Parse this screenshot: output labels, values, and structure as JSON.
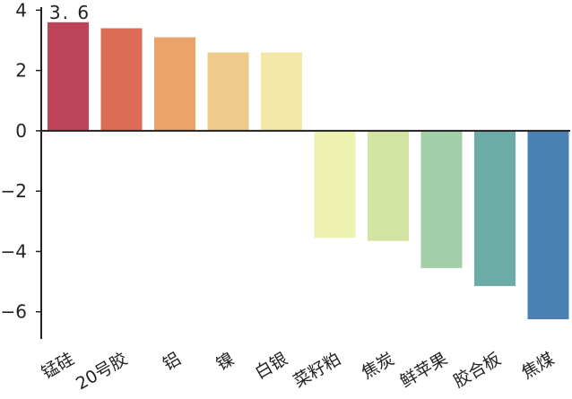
{
  "chart_data": {
    "type": "bar",
    "title": "",
    "xlabel": "",
    "ylabel": "",
    "categories": [
      "锰硅",
      "20号胶",
      "铝",
      "镍",
      "白银",
      "菜籽粕",
      "焦炭",
      "鲜苹果",
      "胶合板",
      "焦煤"
    ],
    "values": [
      3.6,
      3.4,
      3.1,
      2.6,
      2.6,
      -3.55,
      -3.65,
      -4.55,
      -5.15,
      -6.25
    ],
    "colors": [
      "#be4459",
      "#dd6c57",
      "#eca36a",
      "#eecb8a",
      "#f3e7a8",
      "#eef2b0",
      "#d3e3a2",
      "#a2cfa8",
      "#6bada6",
      "#4a81b2"
    ],
    "ylim": [
      -6.9,
      4.1
    ],
    "yticks": [
      4,
      2,
      0,
      -2,
      -4,
      -6
    ],
    "ytick_labels": [
      "4",
      "2",
      "0",
      "−2",
      "−4",
      "−6"
    ],
    "data_labels": [
      {
        "index": 0,
        "text": "3. 6"
      }
    ],
    "grid": false,
    "legend": "none"
  }
}
